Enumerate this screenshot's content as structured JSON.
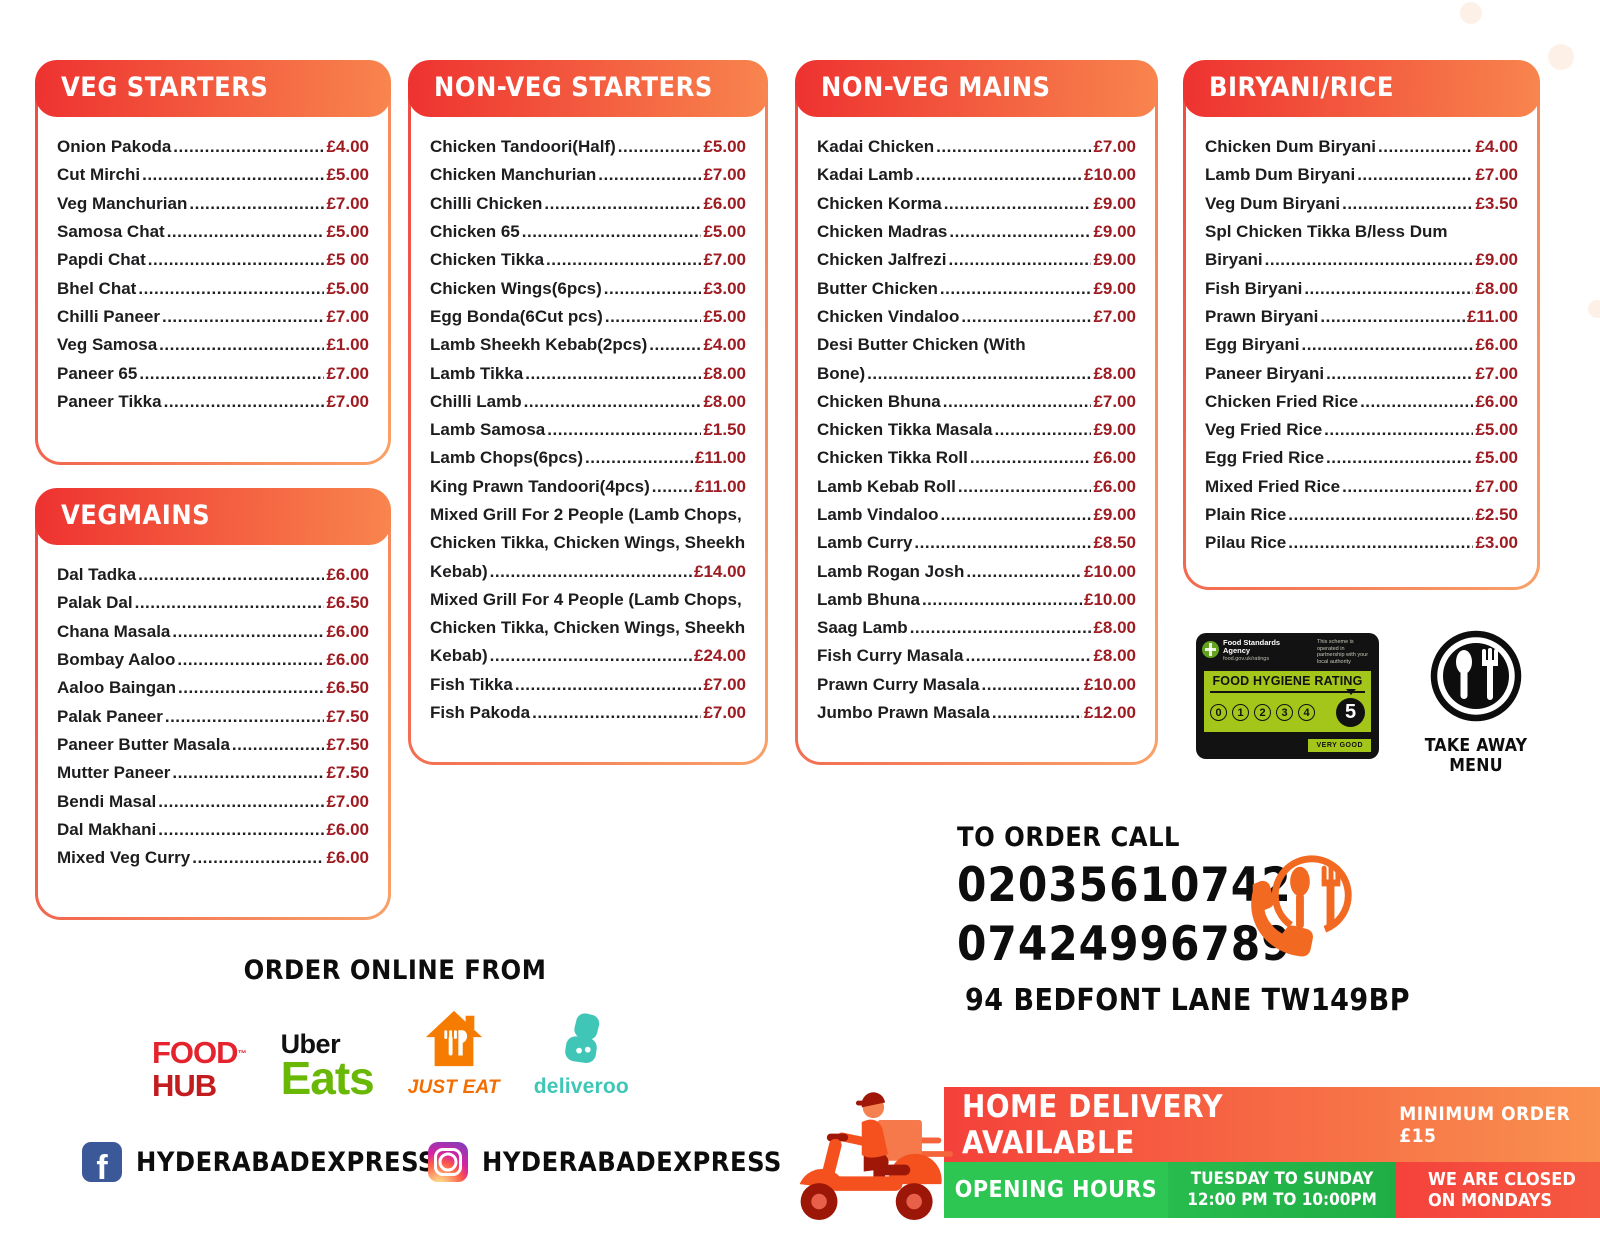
{
  "menu": {
    "sections": [
      {
        "title": "VEG STARTERS",
        "items": [
          {
            "name": "Onion Pakoda",
            "price": "£4.00"
          },
          {
            "name": "Cut Mirchi ",
            "price": "£5.00"
          },
          {
            "name": "Veg Manchurian",
            "price": "£7.00"
          },
          {
            "name": "Samosa Chat ",
            "price": "£5.00"
          },
          {
            "name": "Papdi Chat ",
            "price": "£5 00"
          },
          {
            "name": "Bhel Chat",
            "price": "£5.00"
          },
          {
            "name": "Chilli Paneer",
            "price": "£7.00"
          },
          {
            "name": "Veg Samosa ",
            "price": "£1.00"
          },
          {
            "name": "Paneer 65",
            "price": "£7.00"
          },
          {
            "name": "Paneer Tikka ",
            "price": "£7.00"
          }
        ]
      },
      {
        "title": "VEGMAINS",
        "items": [
          {
            "name": "Dal Tadka",
            "price": "£6.00"
          },
          {
            "name": "Palak Dal",
            "price": "£6.50"
          },
          {
            "name": "Chana Masala",
            "price": " £6.00"
          },
          {
            "name": "Bombay Aaloo",
            "price": "£6.00"
          },
          {
            "name": "Aaloo Baingan ",
            "price": "£6.50"
          },
          {
            "name": "Palak Paneer ",
            "price": "£7.50"
          },
          {
            "name": "Paneer Butter Masala",
            "price": "£7.50"
          },
          {
            "name": "Mutter Paneer",
            "price": "£7.50"
          },
          {
            "name": "Bendi Masal ",
            "price": "£7.00"
          },
          {
            "name": "Dal Makhani",
            "price": "£6.00"
          },
          {
            "name": "Mixed Veg Curry",
            "price": "£6.00"
          }
        ]
      },
      {
        "title": "NON-VEG STARTERS",
        "items": [
          {
            "name": "Chicken Tandoori(Half)",
            "price": "£5.00"
          },
          {
            "name": "Chicken Manchurian",
            "price": "£7.00"
          },
          {
            "name": "Chilli Chicken",
            "price": "£6.00"
          },
          {
            "name": "Chicken 65",
            "price": "£5.00"
          },
          {
            "name": "Chicken Tikka",
            "price": "£7.00"
          },
          {
            "name": "Chicken Wings(6pcs)",
            "price": "£3.00"
          },
          {
            "name": "Egg Bonda(6Cut pcs) ",
            "price": "£5.00"
          },
          {
            "name": "Lamb Sheekh Kebab(2pcs)",
            "price": "£4.00"
          },
          {
            "name": "Lamb Tikka",
            "price": "£8.00"
          },
          {
            "name": "Chilli Lamb",
            "price": "£8.00"
          },
          {
            "name": "Lamb Samosa ",
            "price": "£1.50"
          },
          {
            "name": "Lamb Chops(6pcs) ",
            "price": "£11.00"
          },
          {
            "name": "King Prawn Tandoori(4pcs)",
            "price": "£11.00"
          },
          {
            "pre_lines": [
              "Mixed Grill For 2 People (Lamb Chops,",
              "Chicken Tikka, Chicken Wings, Sheekh"
            ],
            "name": "Kebab)",
            "price": "£14.00"
          },
          {
            "pre_lines": [
              "Mixed Grill For 4 People (Lamb Chops,",
              "Chicken Tikka, Chicken Wings, Sheekh"
            ],
            "name": "Kebab) ",
            "price": "£24.00"
          },
          {
            "name": "Fish Tikka",
            "price": "£7.00"
          },
          {
            "name": "Fish Pakoda",
            "price": "£7.00"
          }
        ]
      },
      {
        "title": "NON-VEG MAINS",
        "items": [
          {
            "name": "Kadai Chicken",
            "price": "£7.00"
          },
          {
            "name": "Kadai Lamb",
            "price": "£10.00"
          },
          {
            "name": "Chicken Korma",
            "price": "£9.00"
          },
          {
            "name": "Chicken Madras",
            "price": "£9.00"
          },
          {
            "name": "Chicken Jalfrezi",
            "price": "£9.00"
          },
          {
            "name": "Butter Chicken",
            "price": "£9.00"
          },
          {
            "name": "Chicken Vindaloo ",
            "price": "£7.00"
          },
          {
            "pre_lines": [
              "Desi Butter Chicken (With"
            ],
            "name": "Bone)",
            "price": "£8.00"
          },
          {
            "name": "Chicken Bhuna",
            "price": "£7.00"
          },
          {
            "name": "Chicken Tikka Masala",
            "price": "£9.00"
          },
          {
            "name": "Chicken Tikka Roll",
            "price": "£6.00"
          },
          {
            "name": "Lamb Kebab Roll",
            "price": "£6.00"
          },
          {
            "name": "Lamb Vindaloo ",
            "price": "£9.00"
          },
          {
            "name": "Lamb Curry",
            "price": "£8.50"
          },
          {
            "name": "Lamb Rogan Josh ",
            "price": "£10.00"
          },
          {
            "name": "Lamb Bhuna",
            "price": "£10.00"
          },
          {
            "name": "Saag Lamb",
            "price": "£8.00"
          },
          {
            "name": "Fish Curry Masala",
            "price": "£8.00"
          },
          {
            "name": "Prawn Curry Masala",
            "price": "£10.00"
          },
          {
            "name": "Jumbo Prawn Masala",
            "price": "£12.00"
          }
        ]
      },
      {
        "title": "BIRYANI/RICE",
        "items": [
          {
            "name": "Chicken Dum Biryani",
            "price": "£4.00"
          },
          {
            "name": "Lamb Dum Biryani",
            "price": "£7.00"
          },
          {
            "name": "Veg Dum Biryani ",
            "price": "£3.50"
          },
          {
            "pre_lines": [
              "Spl Chicken Tikka B/less Dum"
            ],
            "name": "Biryani",
            "price": "£9.00"
          },
          {
            "name": "Fish Biryani",
            "price": "£8.00"
          },
          {
            "name": "Prawn Biryani ",
            "price": "£11.00"
          },
          {
            "name": "Egg Biryani",
            "price": "£6.00"
          },
          {
            "name": "Paneer Biryani",
            "price": "£7.00"
          },
          {
            "name": "Chicken Fried Rice",
            "price": "£6.00"
          },
          {
            "name": "Veg Fried Rice",
            "price": "£5.00"
          },
          {
            "name": "Egg Fried Rice",
            "price": "£5.00"
          },
          {
            "name": "Mixed Fried Rice",
            "price": "£7.00"
          },
          {
            "name": "Plain Rice",
            "price": "£2.50"
          },
          {
            "name": "Pilau Rice",
            "price": "£3.00"
          }
        ]
      }
    ]
  },
  "hygiene": {
    "agency": "Food Standards Agency",
    "website": "food.gov.uk/ratings",
    "note": "This scheme is operated in partnership with your local authority",
    "title": "FOOD HYGIENE RATING",
    "scale": [
      "0",
      "1",
      "2",
      "3",
      "4"
    ],
    "rating": "5",
    "verdict": "VERY GOOD"
  },
  "takeaway": {
    "label": "TAKE AWAY MENU"
  },
  "order_call": {
    "heading": "TO ORDER CALL",
    "phone1": "02035610742",
    "phone2": "07424996789",
    "address": "94 BEDFONT LANE TW149BP"
  },
  "order_online": {
    "heading": "ORDER ONLINE FROM",
    "logos": {
      "foodhub_top": "FOOD",
      "foodhub_tm": "TM",
      "foodhub_bottom": "HUB",
      "uber": "Uber",
      "eats": "Eats",
      "justeat": "JUST EAT",
      "deliveroo": "deliveroo"
    }
  },
  "social": {
    "facebook_handle": "HYDERABADEXPRESS",
    "instagram_handle": "HYDERABADEXPRESS"
  },
  "delivery_banner": {
    "title": "HOME DELIVERY AVAILABLE",
    "minimum": "MINIMUM ORDER £15",
    "opening_label": "OPENING HOURS",
    "days": "TUESDAY TO SUNDAY",
    "hours": "12:00 PM TO 10:00PM",
    "closed_line1": "WE ARE CLOSED",
    "closed_line2": "ON MONDAYS"
  },
  "colors": {
    "header_gradient_start": "#ee3230",
    "header_gradient_end": "#f8854e",
    "price_red": "#9e1b21",
    "fsa_green": "#a4c61a",
    "banner_green": "#2dc653",
    "banner_red": "#f5413c",
    "accent_orange": "#f26a21"
  }
}
